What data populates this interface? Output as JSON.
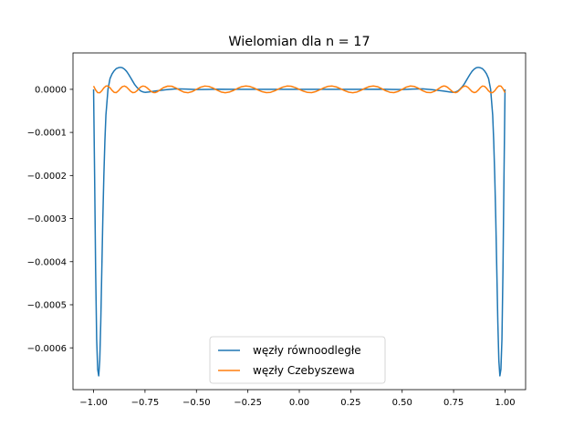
{
  "chart_data": {
    "type": "line",
    "title": "Wielomian dla n = 17",
    "xlabel": "",
    "ylabel": "",
    "xlim": [
      -1.1,
      1.1
    ],
    "ylim": [
      -0.000697,
      8.45e-05
    ],
    "grid": false,
    "legend_position": "lower-center",
    "x_ticks": [
      -1.0,
      -0.75,
      -0.5,
      -0.25,
      0.0,
      0.25,
      0.5,
      0.75,
      1.0
    ],
    "x_tick_labels": [
      "−1.00",
      "−0.75",
      "−0.50",
      "−0.25",
      "0.00",
      "0.25",
      "0.50",
      "0.75",
      "1.00"
    ],
    "y_ticks": [
      0.0,
      -0.0001,
      -0.0002,
      -0.0003,
      -0.0004,
      -0.0005,
      -0.0006
    ],
    "y_tick_labels": [
      "0.0000",
      "−0.0001",
      "−0.0002",
      "−0.0003",
      "−0.0004",
      "−0.0005",
      "−0.0006"
    ],
    "series": [
      {
        "name": "węzły równoodległe",
        "color": "#1f77b4",
        "x": [
          -1.0,
          -0.995,
          -0.99,
          -0.985,
          -0.98,
          -0.975,
          -0.97,
          -0.965,
          -0.96,
          -0.955,
          -0.95,
          -0.945,
          -0.94,
          -0.93,
          -0.92,
          -0.91,
          -0.9,
          -0.89,
          -0.88,
          -0.87,
          -0.86,
          -0.85,
          -0.84,
          -0.83,
          -0.82,
          -0.81,
          -0.8,
          -0.79,
          -0.78,
          -0.77,
          -0.76,
          -0.75,
          -0.73,
          -0.7,
          -0.65,
          -0.6,
          -0.55,
          -0.5,
          -0.45,
          -0.4,
          -0.3,
          -0.2,
          -0.1,
          0.0,
          0.1,
          0.2,
          0.3,
          0.4,
          0.45,
          0.5,
          0.55,
          0.6,
          0.65,
          0.7,
          0.73,
          0.75,
          0.76,
          0.77,
          0.78,
          0.79,
          0.8,
          0.81,
          0.82,
          0.83,
          0.84,
          0.85,
          0.86,
          0.87,
          0.88,
          0.89,
          0.9,
          0.91,
          0.92,
          0.93,
          0.94,
          0.945,
          0.95,
          0.955,
          0.96,
          0.965,
          0.97,
          0.975,
          0.98,
          0.985,
          0.99,
          0.995,
          1.0
        ],
        "y": [
          0.0,
          -0.0002,
          -0.00042,
          -0.00058,
          -0.00065,
          -0.000665,
          -0.00063,
          -0.00054,
          -0.00042,
          -0.0003,
          -0.0002,
          -0.00012,
          -6e-05,
          0.0,
          2.5e-05,
          3.6e-05,
          4.3e-05,
          4.8e-05,
          5e-05,
          5.1e-05,
          5e-05,
          4.7e-05,
          4.2e-05,
          3.5e-05,
          2.7e-05,
          1.9e-05,
          1.1e-05,
          5e-06,
          0.0,
          -4e-06,
          -6e-06,
          -7e-06,
          -6e-06,
          -4e-06,
          -1e-06,
          1e-06,
          5e-07,
          -5e-07,
          -3e-07,
          2e-07,
          0.0,
          0.0,
          0.0,
          0.0,
          0.0,
          0.0,
          0.0,
          2e-07,
          -3e-07,
          -5e-07,
          5e-07,
          1e-06,
          -1e-06,
          -4e-06,
          -6e-06,
          -7e-06,
          -6e-06,
          -4e-06,
          0.0,
          5e-06,
          1.1e-05,
          1.9e-05,
          2.7e-05,
          3.5e-05,
          4.2e-05,
          4.7e-05,
          5e-05,
          5.1e-05,
          5e-05,
          4.8e-05,
          4.3e-05,
          3.6e-05,
          2.5e-05,
          0.0,
          -6e-05,
          -0.00012,
          -0.0002,
          -0.0003,
          -0.00042,
          -0.00054,
          -0.00063,
          -0.000665,
          -0.00065,
          -0.00058,
          -0.00042,
          -0.0002,
          0.0
        ]
      },
      {
        "name": "węzły Czebyszewa",
        "color": "#ff7f0e",
        "x": [
          -1.0,
          -0.99,
          -0.98,
          -0.97,
          -0.96,
          -0.95,
          -0.94,
          -0.93,
          -0.92,
          -0.91,
          -0.9,
          -0.89,
          -0.88,
          -0.87,
          -0.86,
          -0.85,
          -0.84,
          -0.83,
          -0.82,
          -0.81,
          -0.8,
          -0.79,
          -0.78,
          -0.77,
          -0.76,
          -0.75,
          -0.74,
          -0.73,
          -0.72,
          -0.71,
          -0.7,
          -0.69,
          -0.68,
          -0.66,
          -0.64,
          -0.62,
          -0.6,
          -0.58,
          -0.56,
          -0.54,
          -0.52,
          -0.5,
          -0.48,
          -0.46,
          -0.44,
          -0.42,
          -0.4,
          -0.38,
          -0.36,
          -0.34,
          -0.32,
          -0.3,
          -0.28,
          -0.26,
          -0.24,
          -0.22,
          -0.2,
          -0.18,
          -0.16,
          -0.14,
          -0.12,
          -0.1,
          -0.08,
          -0.06,
          -0.04,
          -0.02,
          0.0,
          0.02,
          0.04,
          0.06,
          0.08,
          0.1,
          0.12,
          0.14,
          0.16,
          0.18,
          0.2,
          0.22,
          0.24,
          0.26,
          0.28,
          0.3,
          0.32,
          0.34,
          0.36,
          0.38,
          0.4,
          0.42,
          0.44,
          0.46,
          0.48,
          0.5,
          0.52,
          0.54,
          0.56,
          0.58,
          0.6,
          0.62,
          0.64,
          0.66,
          0.68,
          0.69,
          0.7,
          0.71,
          0.72,
          0.73,
          0.74,
          0.75,
          0.76,
          0.77,
          0.78,
          0.79,
          0.8,
          0.81,
          0.82,
          0.83,
          0.84,
          0.85,
          0.86,
          0.87,
          0.88,
          0.89,
          0.9,
          0.91,
          0.92,
          0.93,
          0.94,
          0.95,
          0.96,
          0.97,
          0.98,
          0.99,
          1.0
        ],
        "y": [
          7.6e-06,
          -1.5e-06,
          -7.6e-06,
          -8e-06,
          -3.4e-06,
          3.4e-06,
          7.6e-06,
          7.6e-06,
          3.6e-06,
          -2.5e-06,
          -7e-06,
          -7.6e-06,
          -3.8e-06,
          1.7e-06,
          6.3e-06,
          7.6e-06,
          5.4e-06,
          5e-07,
          -4.5e-06,
          -7.5e-06,
          -7.2e-06,
          -3.8e-06,
          1.3e-06,
          5.8e-06,
          7.6e-06,
          6.8e-06,
          3.6e-06,
          -8e-07,
          -5e-06,
          -7.4e-06,
          -7.6e-06,
          -5.6e-06,
          -2.4e-06,
          4e-06,
          7.5e-06,
          7.2e-06,
          3.2e-06,
          -2.2e-06,
          -6.6e-06,
          -7.8e-06,
          -5.2e-06,
          0.0,
          5e-06,
          7.6e-06,
          6.8e-06,
          3.2e-06,
          -1.8e-06,
          -6.2e-06,
          -7.8e-06,
          -6.4e-06,
          -2.6e-06,
          2.2e-06,
          6.2e-06,
          7.8e-06,
          6.6e-06,
          3e-06,
          -1.6e-06,
          -5.6e-06,
          -7.6e-06,
          -7e-06,
          -3.6e-06,
          1e-06,
          5.2e-06,
          7.6e-06,
          7.2e-06,
          4.2e-06,
          0.0,
          -4.2e-06,
          -7.2e-06,
          -7.6e-06,
          -5.2e-06,
          -1e-06,
          3.6e-06,
          7e-06,
          7.6e-06,
          5.6e-06,
          1.6e-06,
          -3e-06,
          -6.6e-06,
          -7.8e-06,
          -6.2e-06,
          -2.2e-06,
          2.6e-06,
          6.4e-06,
          7.8e-06,
          6.2e-06,
          1.8e-06,
          -3.2e-06,
          -6.8e-06,
          -7.6e-06,
          -5e-06,
          0.0,
          5.2e-06,
          7.8e-06,
          6.6e-06,
          2.2e-06,
          -3.2e-06,
          -7.2e-06,
          -7.5e-06,
          -4e-06,
          2.4e-06,
          5.6e-06,
          7.6e-06,
          7.4e-06,
          5e-06,
          8e-07,
          -3.6e-06,
          -6.8e-06,
          -7.6e-06,
          -5.8e-06,
          -1.3e-06,
          3.8e-06,
          7.2e-06,
          7.5e-06,
          4.5e-06,
          -5e-07,
          -5.4e-06,
          -7.6e-06,
          -6.3e-06,
          -1.7e-06,
          3.8e-06,
          7.6e-06,
          7e-06,
          2.5e-06,
          -3.6e-06,
          -7.6e-06,
          -7.6e-06,
          -3.4e-06,
          3.4e-06,
          8e-06,
          7.6e-06,
          1.5e-06,
          -7.6e-06
        ]
      }
    ]
  }
}
